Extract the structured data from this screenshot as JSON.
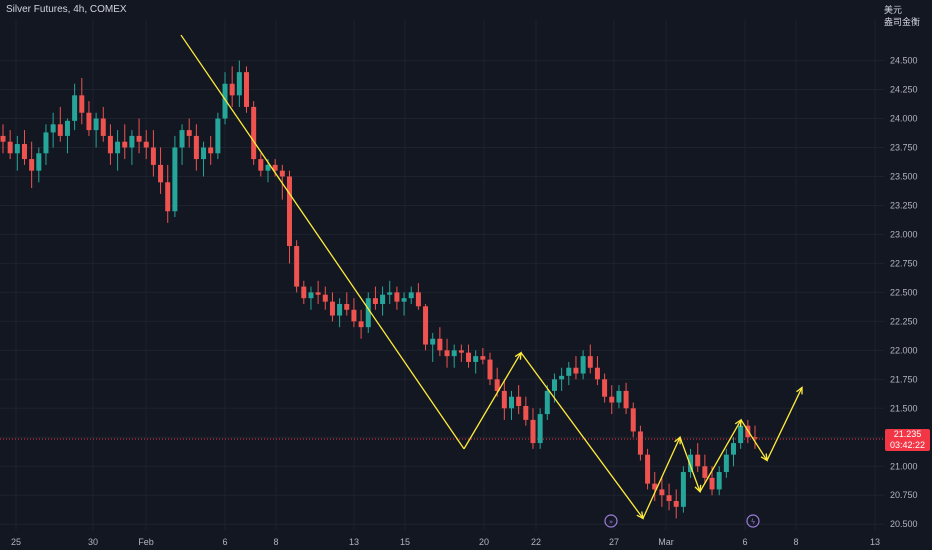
{
  "header": {
    "symbol_title": "Silver Futures, 4h, COMEX",
    "currency": "美元",
    "unit_label": "盎司金衡"
  },
  "last_price": {
    "value": "21.235",
    "countdown": "03:42:22"
  },
  "colors": {
    "up": "#26a69a",
    "down": "#ef5350",
    "pattern": "#ffeb3b",
    "grid": "#1e222d",
    "text": "#b2b5be"
  },
  "chart_data": {
    "type": "candlestick",
    "title": "Silver Futures, 4h, COMEX",
    "y_ticks": [
      20.5,
      20.75,
      21.0,
      21.25,
      21.5,
      21.75,
      22.0,
      22.25,
      22.5,
      22.75,
      23.0,
      23.25,
      23.5,
      23.75,
      24.0,
      24.25,
      24.5
    ],
    "y_tick_labels": [
      "20.500",
      "20.750",
      "21.000",
      "21.250",
      "21.500",
      "21.750",
      "22.000",
      "22.250",
      "22.500",
      "22.750",
      "23.000",
      "23.250",
      "23.500",
      "23.750",
      "24.000",
      "24.250",
      "24.500"
    ],
    "ylim": [
      20.45,
      24.85
    ],
    "x_tick_labels": [
      "25",
      "30",
      "Feb",
      "6",
      "8",
      "13",
      "15",
      "20",
      "22",
      "27",
      "Mar",
      "6",
      "8",
      "13"
    ],
    "ohlc": [
      [
        23.85,
        23.95,
        23.7,
        23.8
      ],
      [
        23.8,
        23.9,
        23.65,
        23.7
      ],
      [
        23.7,
        23.85,
        23.55,
        23.78
      ],
      [
        23.78,
        23.9,
        23.6,
        23.65
      ],
      [
        23.65,
        23.8,
        23.4,
        23.55
      ],
      [
        23.55,
        23.75,
        23.45,
        23.7
      ],
      [
        23.7,
        23.95,
        23.6,
        23.88
      ],
      [
        23.88,
        24.05,
        23.75,
        23.95
      ],
      [
        23.95,
        24.1,
        23.8,
        23.85
      ],
      [
        23.85,
        24.0,
        23.7,
        23.98
      ],
      [
        23.98,
        24.3,
        23.9,
        24.2
      ],
      [
        24.2,
        24.35,
        23.95,
        24.05
      ],
      [
        24.05,
        24.15,
        23.85,
        23.9
      ],
      [
        23.9,
        24.05,
        23.75,
        24.0
      ],
      [
        24.0,
        24.1,
        23.8,
        23.85
      ],
      [
        23.85,
        23.95,
        23.6,
        23.7
      ],
      [
        23.7,
        23.9,
        23.55,
        23.8
      ],
      [
        23.8,
        23.95,
        23.65,
        23.75
      ],
      [
        23.75,
        23.9,
        23.6,
        23.85
      ],
      [
        23.85,
        24.0,
        23.7,
        23.8
      ],
      [
        23.8,
        23.9,
        23.65,
        23.75
      ],
      [
        23.75,
        23.9,
        23.5,
        23.6
      ],
      [
        23.6,
        23.75,
        23.35,
        23.45
      ],
      [
        23.45,
        23.6,
        23.1,
        23.2
      ],
      [
        23.2,
        23.85,
        23.15,
        23.75
      ],
      [
        23.75,
        23.95,
        23.6,
        23.9
      ],
      [
        23.9,
        24.0,
        23.75,
        23.85
      ],
      [
        23.85,
        23.95,
        23.55,
        23.65
      ],
      [
        23.65,
        23.8,
        23.5,
        23.75
      ],
      [
        23.75,
        23.85,
        23.6,
        23.7
      ],
      [
        23.7,
        24.05,
        23.65,
        24.0
      ],
      [
        24.0,
        24.4,
        23.95,
        24.3
      ],
      [
        24.3,
        24.45,
        24.1,
        24.2
      ],
      [
        24.2,
        24.5,
        24.1,
        24.4
      ],
      [
        24.4,
        24.45,
        24.05,
        24.1
      ],
      [
        24.1,
        24.15,
        23.6,
        23.65
      ],
      [
        23.65,
        23.7,
        23.5,
        23.55
      ],
      [
        23.55,
        23.65,
        23.45,
        23.6
      ],
      [
        23.6,
        23.65,
        23.5,
        23.55
      ],
      [
        23.55,
        23.6,
        23.3,
        23.5
      ],
      [
        23.5,
        23.55,
        22.75,
        22.9
      ],
      [
        22.9,
        22.95,
        22.5,
        22.55
      ],
      [
        22.55,
        22.6,
        22.4,
        22.45
      ],
      [
        22.45,
        22.55,
        22.35,
        22.5
      ],
      [
        22.5,
        22.6,
        22.4,
        22.48
      ],
      [
        22.48,
        22.55,
        22.35,
        22.42
      ],
      [
        22.42,
        22.5,
        22.25,
        22.3
      ],
      [
        22.3,
        22.45,
        22.2,
        22.4
      ],
      [
        22.4,
        22.5,
        22.3,
        22.35
      ],
      [
        22.35,
        22.45,
        22.2,
        22.25
      ],
      [
        22.25,
        22.35,
        22.1,
        22.2
      ],
      [
        22.2,
        22.5,
        22.15,
        22.45
      ],
      [
        22.45,
        22.55,
        22.35,
        22.4
      ],
      [
        22.4,
        22.55,
        22.3,
        22.48
      ],
      [
        22.48,
        22.6,
        22.4,
        22.5
      ],
      [
        22.5,
        22.55,
        22.35,
        22.42
      ],
      [
        22.42,
        22.5,
        22.3,
        22.45
      ],
      [
        22.45,
        22.55,
        22.4,
        22.5
      ],
      [
        22.5,
        22.58,
        22.35,
        22.38
      ],
      [
        22.38,
        22.4,
        22.0,
        22.05
      ],
      [
        22.05,
        22.15,
        21.9,
        22.1
      ],
      [
        22.1,
        22.2,
        21.95,
        22.0
      ],
      [
        22.0,
        22.1,
        21.85,
        21.95
      ],
      [
        21.95,
        22.05,
        21.85,
        22.0
      ],
      [
        22.0,
        22.05,
        21.9,
        21.98
      ],
      [
        21.98,
        22.05,
        21.85,
        21.9
      ],
      [
        21.9,
        22.0,
        21.8,
        21.95
      ],
      [
        21.95,
        22.02,
        21.88,
        21.92
      ],
      [
        21.92,
        21.98,
        21.7,
        21.75
      ],
      [
        21.75,
        21.85,
        21.6,
        21.65
      ],
      [
        21.65,
        21.75,
        21.4,
        21.5
      ],
      [
        21.5,
        21.65,
        21.4,
        21.6
      ],
      [
        21.6,
        21.7,
        21.45,
        21.52
      ],
      [
        21.52,
        21.6,
        21.35,
        21.4
      ],
      [
        21.4,
        21.5,
        21.15,
        21.2
      ],
      [
        21.2,
        21.5,
        21.15,
        21.45
      ],
      [
        21.45,
        21.7,
        21.4,
        21.65
      ],
      [
        21.65,
        21.8,
        21.55,
        21.75
      ],
      [
        21.75,
        21.85,
        21.65,
        21.78
      ],
      [
        21.78,
        21.9,
        21.7,
        21.85
      ],
      [
        21.85,
        21.95,
        21.75,
        21.8
      ],
      [
        21.8,
        22.0,
        21.75,
        21.95
      ],
      [
        21.95,
        22.05,
        21.8,
        21.85
      ],
      [
        21.85,
        21.95,
        21.7,
        21.75
      ],
      [
        21.75,
        21.8,
        21.55,
        21.6
      ],
      [
        21.6,
        21.7,
        21.45,
        21.55
      ],
      [
        21.55,
        21.7,
        21.5,
        21.65
      ],
      [
        21.65,
        21.72,
        21.45,
        21.5
      ],
      [
        21.5,
        21.55,
        21.25,
        21.3
      ],
      [
        21.3,
        21.35,
        21.05,
        21.1
      ],
      [
        21.1,
        21.15,
        20.8,
        20.85
      ],
      [
        20.85,
        20.95,
        20.7,
        20.8
      ],
      [
        20.8,
        20.9,
        20.65,
        20.75
      ],
      [
        20.75,
        20.85,
        20.62,
        20.7
      ],
      [
        20.7,
        20.8,
        20.55,
        20.65
      ],
      [
        20.65,
        21.0,
        20.6,
        20.95
      ],
      [
        20.95,
        21.15,
        20.9,
        21.1
      ],
      [
        21.1,
        21.2,
        20.95,
        21.0
      ],
      [
        21.0,
        21.1,
        20.85,
        20.9
      ],
      [
        20.9,
        21.0,
        20.75,
        20.8
      ],
      [
        20.8,
        21.0,
        20.75,
        20.95
      ],
      [
        20.95,
        21.15,
        20.9,
        21.1
      ],
      [
        21.1,
        21.25,
        21.0,
        21.2
      ],
      [
        21.2,
        21.4,
        21.15,
        21.35
      ],
      [
        21.35,
        21.4,
        21.2,
        21.25
      ],
      [
        21.25,
        21.35,
        21.15,
        21.24
      ]
    ],
    "pattern_points": [
      [
        24.72,
        0
      ],
      [
        21.15,
        0
      ],
      [
        21.98,
        0
      ],
      [
        20.55,
        0
      ],
      [
        21.25,
        0
      ],
      [
        20.78,
        0
      ],
      [
        21.4,
        0
      ],
      [
        21.05,
        0
      ],
      [
        21.68,
        0
      ]
    ]
  }
}
